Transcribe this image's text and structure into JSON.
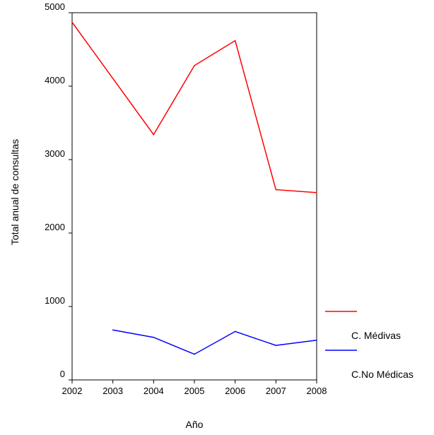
{
  "chart_data": {
    "type": "line",
    "title": "",
    "xlabel": "Año",
    "ylabel": "Total anual de consultas",
    "xlim": [
      2002,
      2008
    ],
    "ylim": [
      0,
      5000
    ],
    "x_ticks": [
      "2002",
      "2003",
      "2004",
      "2005",
      "2006",
      "2007",
      "2008"
    ],
    "y_ticks": [
      "0",
      "1000",
      "2000",
      "3000",
      "4000",
      "5000"
    ],
    "grid": false,
    "legend_position": "bottom-right, outside plot",
    "series": [
      {
        "name": "C. Médivas",
        "color": "#ff0000",
        "x": [
          2002,
          2004,
          2005,
          2006,
          2007,
          2008
        ],
        "values": [
          4870,
          3340,
          4280,
          4620,
          2590,
          2550
        ]
      },
      {
        "name": "C.No Médicas",
        "color": "#0000ff",
        "x": [
          2003,
          2004,
          2005,
          2006,
          2007,
          2008
        ],
        "values": [
          680,
          580,
          350,
          660,
          470,
          540
        ]
      }
    ]
  }
}
